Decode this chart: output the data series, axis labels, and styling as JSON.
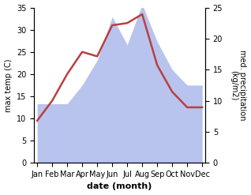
{
  "months": [
    "Jan",
    "Feb",
    "Mar",
    "Apr",
    "May",
    "Jun",
    "Jul",
    "Aug",
    "Sep",
    "Oct",
    "Nov",
    "Dec"
  ],
  "month_indices": [
    0,
    1,
    2,
    3,
    4,
    5,
    6,
    7,
    8,
    9,
    10,
    11
  ],
  "temp": [
    9.5,
    14.0,
    20.0,
    25.0,
    24.0,
    31.0,
    31.5,
    33.5,
    22.0,
    16.0,
    12.5,
    12.5
  ],
  "precip": [
    9.5,
    9.5,
    9.5,
    12.5,
    16.5,
    23.5,
    19.0,
    25.5,
    19.5,
    15.0,
    12.5,
    12.5
  ],
  "temp_color": "#b94040",
  "precip_color": "#b8c4ee",
  "left_ylabel": "max temp (C)",
  "right_ylabel": "med. precipitation\n(kg/m2)",
  "xlabel": "date (month)",
  "left_ylim": [
    0,
    35
  ],
  "right_ylim": [
    0,
    25
  ],
  "left_yticks": [
    0,
    5,
    10,
    15,
    20,
    25,
    30,
    35
  ],
  "right_yticks": [
    0,
    5,
    10,
    15,
    20,
    25
  ],
  "bg_color": "#ffffff",
  "temp_linewidth": 1.8,
  "figsize": [
    3.18,
    2.47
  ],
  "dpi": 100
}
